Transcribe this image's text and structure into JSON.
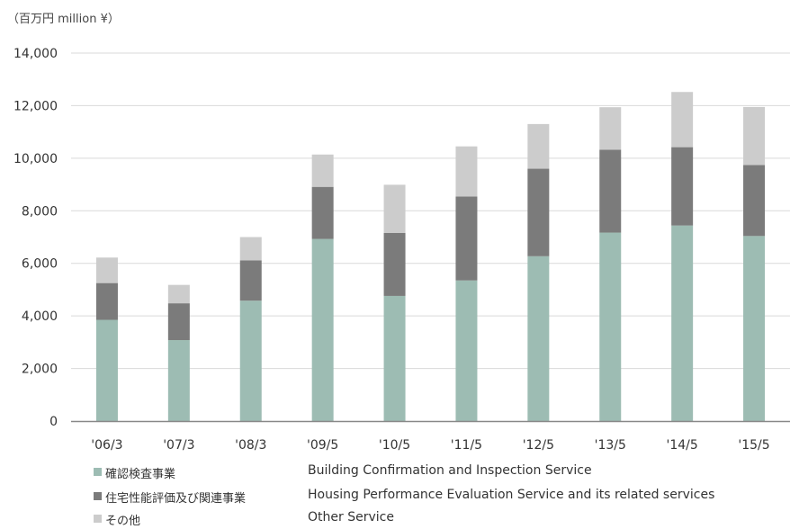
{
  "unit_label": "（百万円 million ¥）",
  "chart_data": {
    "type": "bar",
    "stacked": true,
    "categories": [
      "'06/3",
      "'07/3",
      "'08/3",
      "'09/5",
      "'10/5",
      "'11/5",
      "'12/5",
      "'13/5",
      "'14/5",
      "'15/5"
    ],
    "ylim": [
      0,
      14000
    ],
    "yticks": [
      "0",
      "2,000",
      "4,000",
      "6,000",
      "8,000",
      "10,000",
      "12,000",
      "14,000"
    ],
    "ytick_values": [
      0,
      2000,
      4000,
      6000,
      8000,
      10000,
      12000,
      14000
    ],
    "grid": true,
    "legend_position": "bottom",
    "series": [
      {
        "name": "確認検査事業",
        "name_en": "Building Confirmation and Inspection Service",
        "color": "#9dbcb3",
        "values": [
          3850,
          3080,
          4580,
          6930,
          4760,
          5350,
          6270,
          7170,
          7440,
          7040
        ]
      },
      {
        "name": "住宅性能評価及び関連事業",
        "name_en": "Housing Performance Evaluation Service and its related services",
        "color": "#7b7b7b",
        "values": [
          1400,
          1400,
          1530,
          1980,
          2400,
          3190,
          3330,
          3150,
          2980,
          2700
        ]
      },
      {
        "name": "その他",
        "name_en": "Other Service",
        "color": "#cccccc",
        "values": [
          970,
          700,
          890,
          1230,
          1830,
          1910,
          1700,
          1620,
          2100,
          2210
        ]
      }
    ]
  }
}
